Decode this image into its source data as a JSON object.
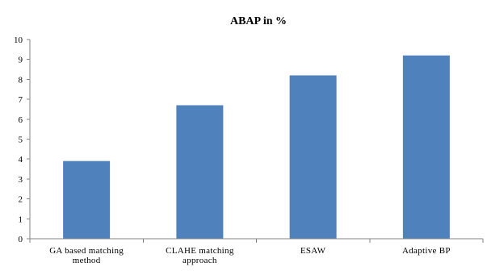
{
  "chart_data": {
    "type": "bar",
    "title": "ABAP in %",
    "xlabel": "",
    "ylabel": "",
    "categories": [
      [
        "GA based matching",
        "method"
      ],
      [
        "CLAHE matching",
        "approach"
      ],
      [
        "ESAW"
      ],
      [
        "Adaptive BP"
      ]
    ],
    "values": [
      3.9,
      6.7,
      8.2,
      9.2
    ],
    "ylim": [
      0,
      10
    ],
    "yticks": [
      "0",
      "1",
      "2",
      "3",
      "4",
      "5",
      "6",
      "7",
      "8",
      "9",
      "10"
    ],
    "grid": false,
    "legend": "none",
    "bar_color": "#4F81BD"
  }
}
